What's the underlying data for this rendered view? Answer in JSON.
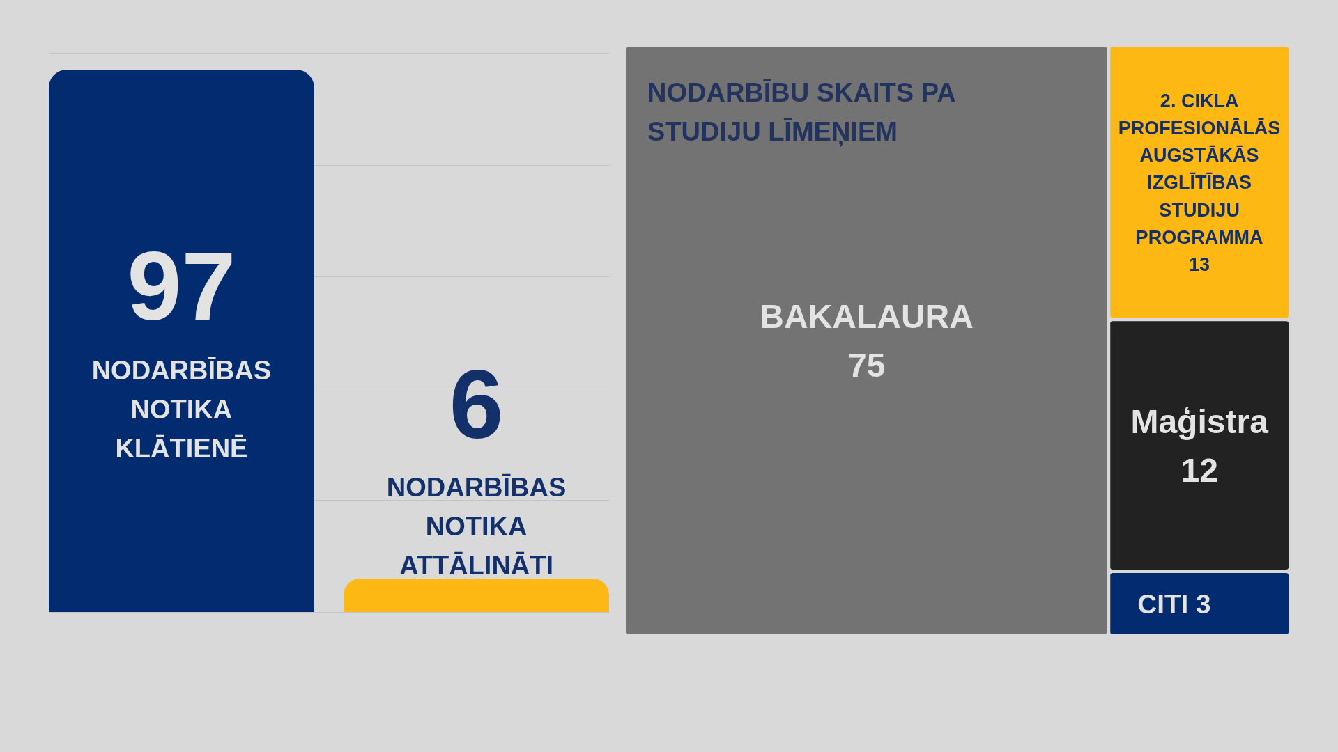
{
  "chart_data": [
    {
      "type": "bar",
      "categories": [
        "NODARBĪBAS NOTIKA KLĀTIENĒ",
        "NODARBĪBAS NOTIKA ATTĀLINĀTI"
      ],
      "values": [
        97,
        6
      ],
      "colors": [
        "#022c6f",
        "#fdb813"
      ],
      "ylim": [
        0,
        100
      ],
      "grid": "y",
      "tick_labels": false,
      "data_labels": true
    },
    {
      "type": "other",
      "title": "NODARBĪBU SKAITS PA STUDIJU LĪMEŅIEM",
      "categories": [
        "BAKALAURA",
        "2. CIKLA PROFESIONĀLĀS AUGSTĀKĀS IZGLĪTĪBAS STUDIJU PROGRAMMA",
        "Maģistra",
        "CITI"
      ],
      "values": [
        75,
        13,
        12,
        3
      ],
      "colors": [
        "#737373",
        "#fdb813",
        "#222222",
        "#022c6f"
      ],
      "data_labels": true
    }
  ]
}
